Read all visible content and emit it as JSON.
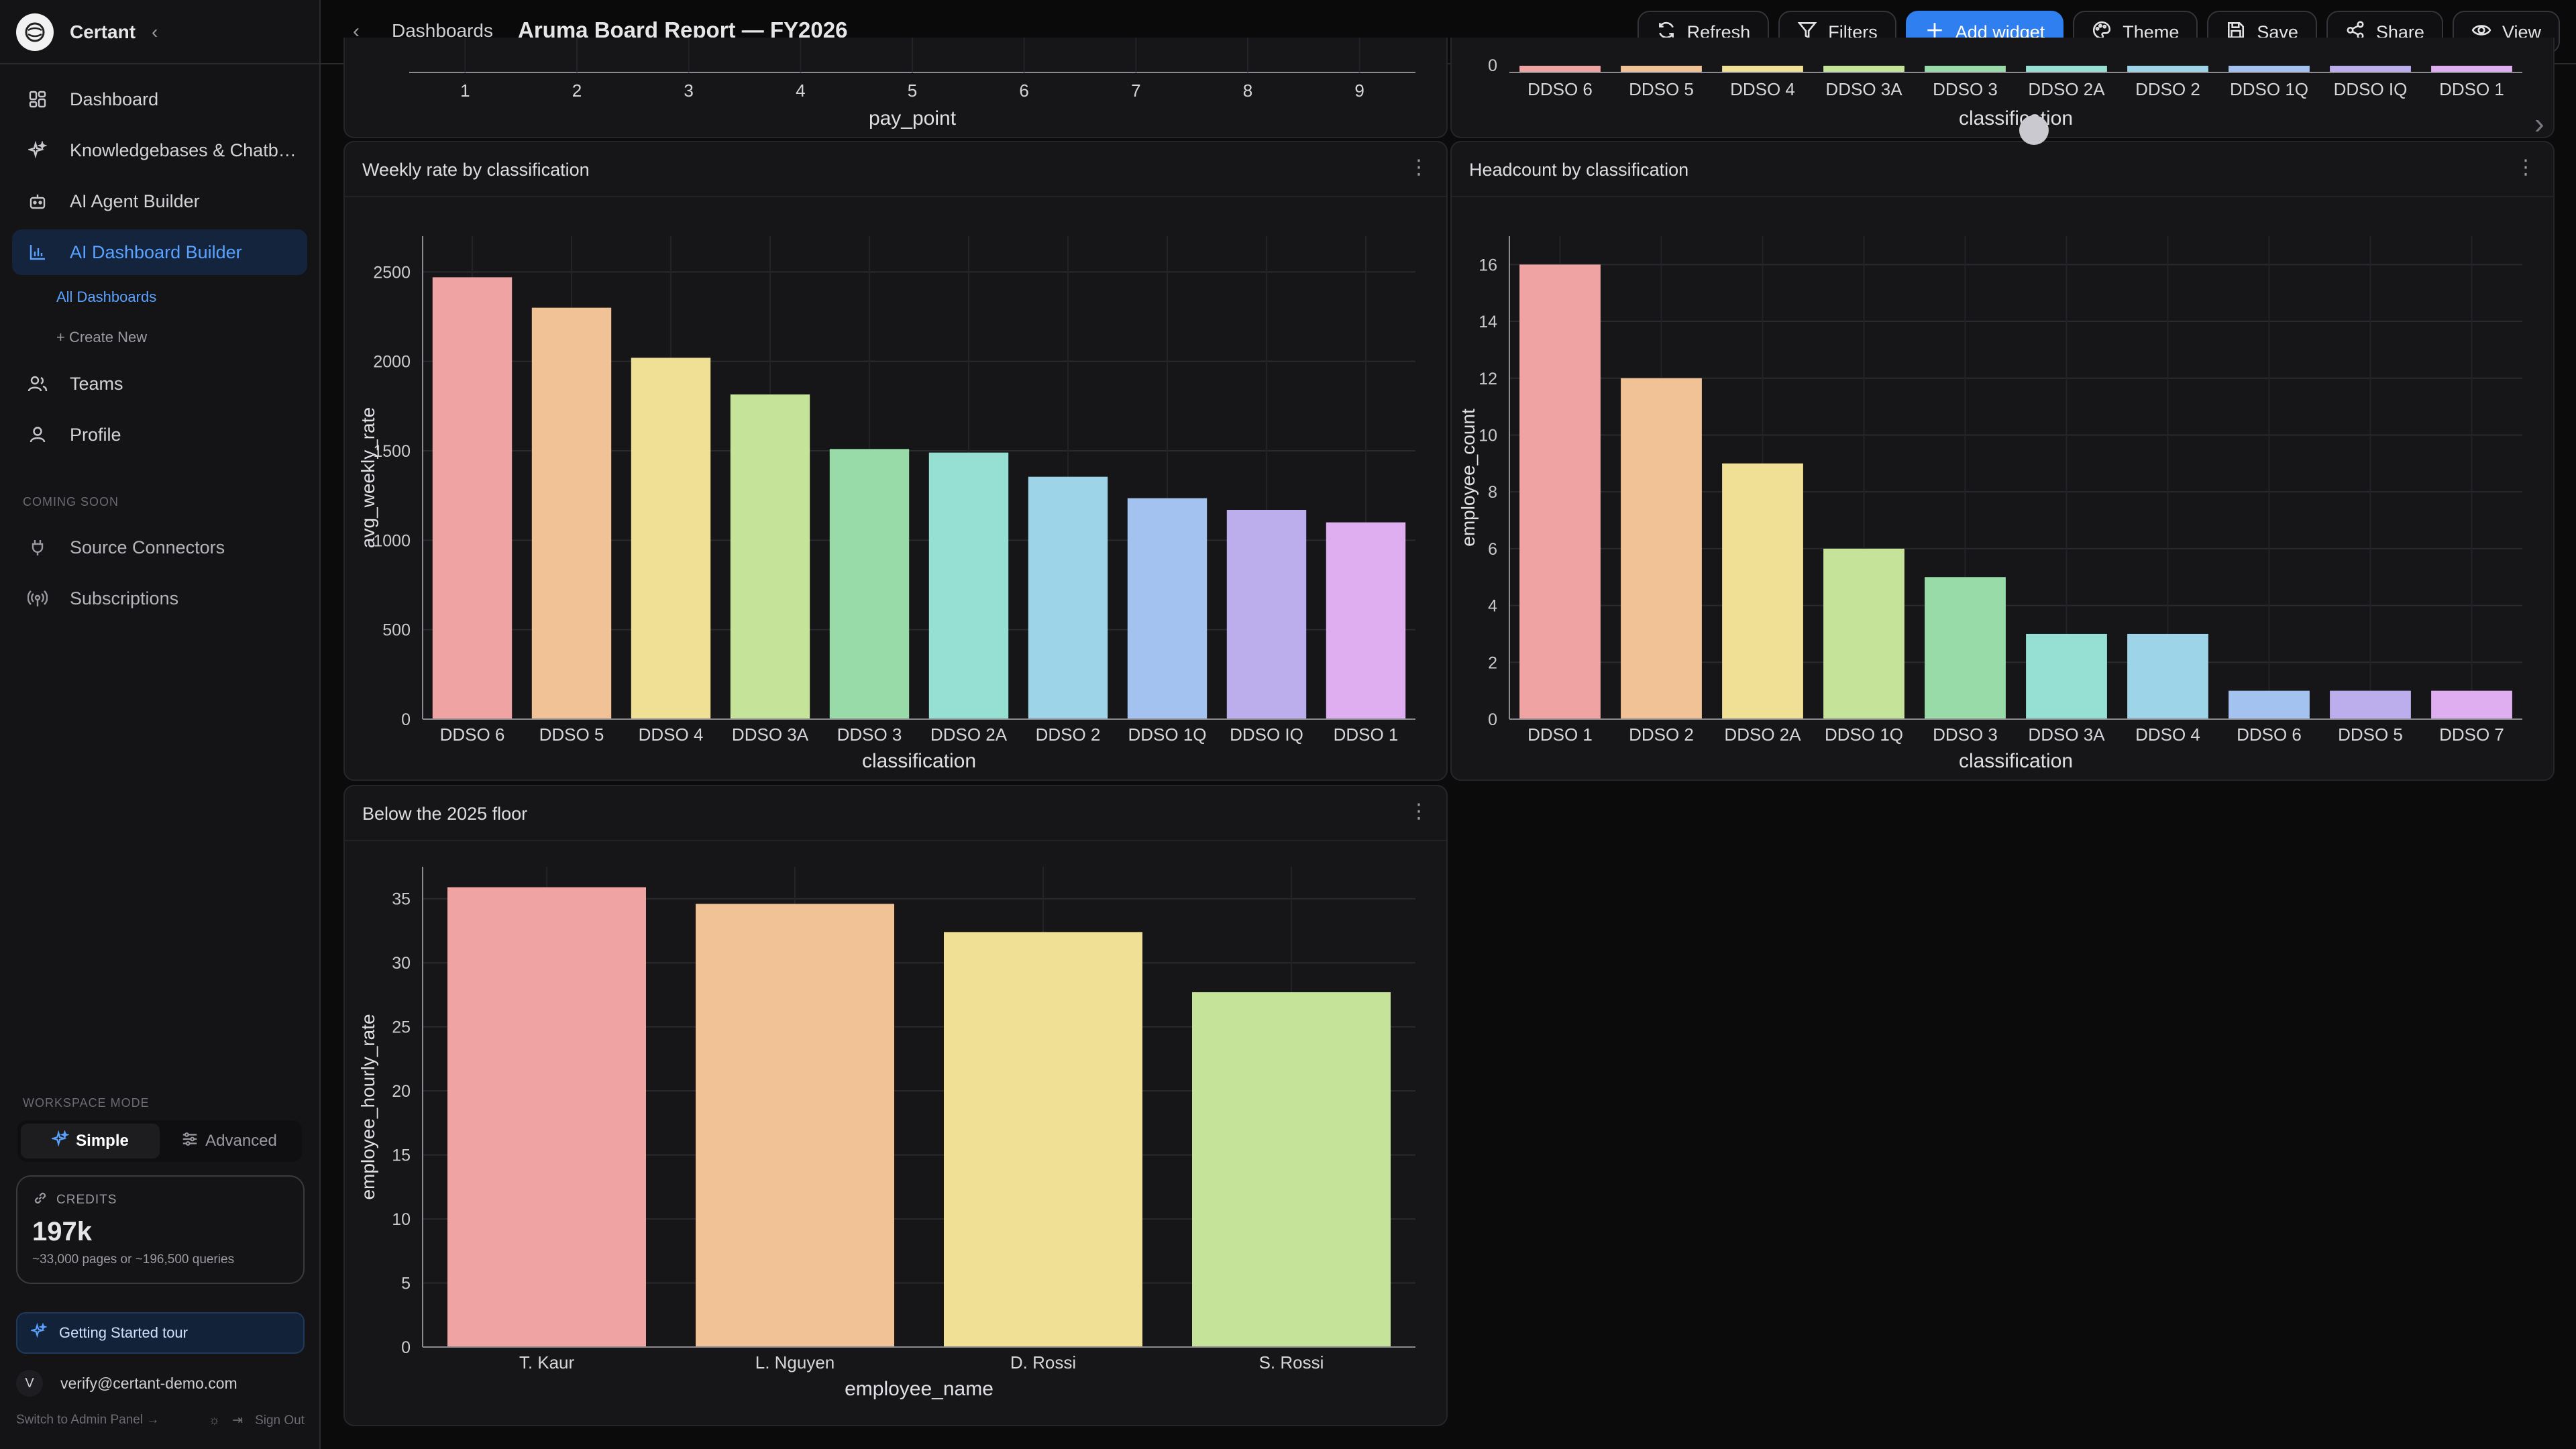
{
  "sidebar": {
    "brand": "Certant",
    "nav": [
      {
        "label": "Dashboard",
        "icon": "grid-icon"
      },
      {
        "label": "Knowledgebases & Chatb…",
        "icon": "sparkle-icon"
      },
      {
        "label": "AI Agent Builder",
        "icon": "robot-icon"
      },
      {
        "label": "AI Dashboard Builder",
        "icon": "bar-chart-icon"
      }
    ],
    "sub": [
      "All Dashboards",
      "+ Create New"
    ],
    "nav2": [
      {
        "label": "Teams",
        "icon": "users-icon"
      },
      {
        "label": "Profile",
        "icon": "user-icon"
      }
    ],
    "coming_soon_label": "COMING SOON",
    "coming": [
      {
        "label": "Source Connectors",
        "icon": "plug-icon"
      },
      {
        "label": "Subscriptions",
        "icon": "broadcast-icon"
      }
    ],
    "workspace_mode_label": "WORKSPACE MODE",
    "mode_simple": "Simple",
    "mode_advanced": "Advanced",
    "credits_label": "CREDITS",
    "credits_value": "197k",
    "credits_note": "~33,000 pages or ~196,500 queries",
    "tour": "Getting Started tour",
    "user_initial": "V",
    "user_email": "verify@certant-demo.com",
    "admin_link": "Switch to Admin Panel →",
    "sign_out": "Sign Out"
  },
  "topbar": {
    "parent": "Dashboards",
    "title": "Aruma Board Report — FY2026",
    "actions": [
      {
        "label": "Refresh",
        "icon": "refresh-icon"
      },
      {
        "label": "Filters",
        "icon": "filter-icon"
      },
      {
        "label": "Add widget",
        "icon": "plus-icon"
      },
      {
        "label": "Theme",
        "icon": "palette-icon"
      },
      {
        "label": "Save",
        "icon": "save-icon"
      },
      {
        "label": "Share",
        "icon": "share-icon"
      },
      {
        "label": "View",
        "icon": "eye-icon"
      }
    ]
  },
  "palette": [
    "#f0a3a3",
    "#f0c296",
    "#f0e096",
    "#c6e39a",
    "#98dba9",
    "#96e0d3",
    "#9ed4e8",
    "#a4c2ef",
    "#bcaeec",
    "#dfaef0"
  ],
  "chart_data": [
    {
      "type": "bar",
      "title": "",
      "xlabel": "pay_point",
      "partial": true,
      "categories": [
        "1",
        "2",
        "3",
        "4",
        "5",
        "6",
        "7",
        "8",
        "9"
      ]
    },
    {
      "type": "bar",
      "title": "",
      "xlabel": "classification",
      "partial": true,
      "categories": [
        "DDSO 6",
        "DDSO 5",
        "DDSO 4",
        "DDSO 3A",
        "DDSO 3",
        "DDSO 2A",
        "DDSO 2",
        "DDSO 1Q",
        "DDSO IQ",
        "DDSO 1"
      ],
      "y_ticks": [
        "0"
      ]
    },
    {
      "type": "bar",
      "title": "Weekly rate by classification",
      "xlabel": "classification",
      "ylabel": "avg_weekly_rate",
      "categories": [
        "DDSO 6",
        "DDSO 5",
        "DDSO 4",
        "DDSO 3A",
        "DDSO 3",
        "DDSO 2A",
        "DDSO 2",
        "DDSO 1Q",
        "DDSO IQ",
        "DDSO 1"
      ],
      "values": [
        2470,
        2300,
        2020,
        1815,
        1510,
        1490,
        1355,
        1235,
        1170,
        1100
      ],
      "ylim": [
        0,
        2700
      ],
      "yticks": [
        0,
        500,
        1000,
        1500,
        2000,
        2500
      ],
      "grid": true
    },
    {
      "type": "bar",
      "title": "Headcount by classification",
      "xlabel": "classification",
      "ylabel": "employee_count",
      "categories": [
        "DDSO 1",
        "DDSO 2",
        "DDSO 2A",
        "DDSO 1Q",
        "DDSO 3",
        "DDSO 3A",
        "DDSO 4",
        "DDSO 6",
        "DDSO 5",
        "DDSO 7"
      ],
      "values": [
        16,
        12,
        9,
        6,
        5,
        3,
        3,
        1,
        1,
        1
      ],
      "ylim": [
        0,
        17
      ],
      "yticks": [
        0,
        2,
        4,
        6,
        8,
        10,
        12,
        14,
        16
      ],
      "grid": true
    },
    {
      "type": "bar",
      "title": "Below the 2025 floor",
      "xlabel": "employee_name",
      "ylabel": "employee_hourly_rate",
      "categories": [
        "T. Kaur",
        "L. Nguyen",
        "D. Rossi",
        "S. Rossi"
      ],
      "values": [
        35.9,
        34.6,
        32.4,
        27.7
      ],
      "ylim": [
        0,
        37.5
      ],
      "yticks": [
        0,
        5,
        10,
        15,
        20,
        25,
        30,
        35
      ],
      "grid": true
    }
  ]
}
